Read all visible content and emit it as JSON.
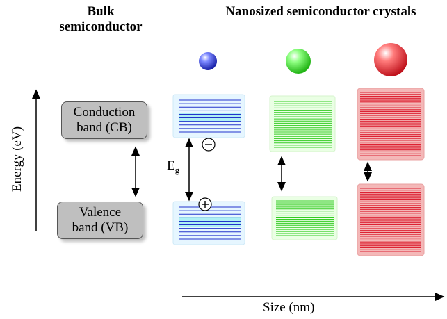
{
  "titles": {
    "bulk_line1": "Bulk",
    "bulk_line2": "semiconductor",
    "nano": "Nanosized semiconductor crystals"
  },
  "bulk_bands": {
    "conduction_line1": "Conduction",
    "conduction_line2": "band (CB)",
    "valence_line1": "Valence",
    "valence_line2": "band (VB)"
  },
  "axes": {
    "energy": "Energy (eV)",
    "size": "Size (nm)"
  },
  "gap": {
    "symbol": "E",
    "subscript": "g"
  },
  "carriers": {
    "electron": "−",
    "hole": "+"
  },
  "colors": {
    "small": "#2233cc",
    "medium": "#33cc22",
    "large": "#dd2233"
  }
}
